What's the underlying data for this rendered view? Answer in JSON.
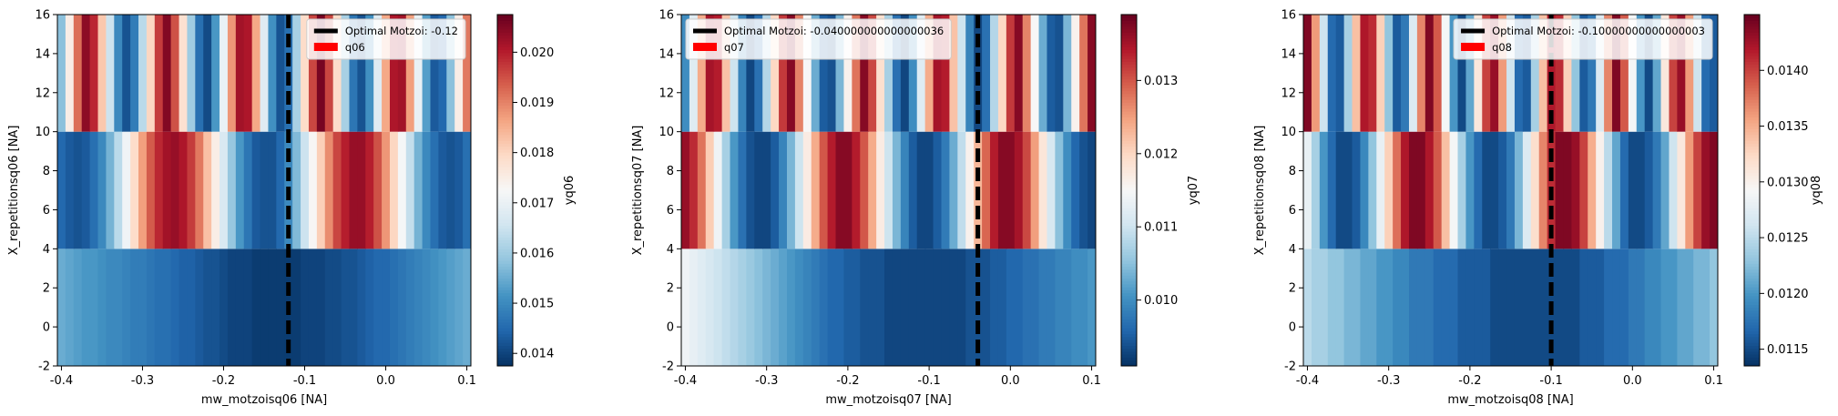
{
  "colormap": "RdBu_r",
  "chart_data": [
    {
      "type": "heatmap",
      "xlabel": "mw_motzoisq06 [NA]",
      "ylabel": "X_repetitionsq06 [NA]",
      "colorbar_label": "yq06",
      "xlim": [
        -0.405,
        0.105
      ],
      "ylim": [
        -2,
        16
      ],
      "x_ticks": [
        -0.4,
        -0.3,
        -0.2,
        -0.1,
        0.0,
        0.1
      ],
      "x_tick_labels": [
        "-0.4",
        "-0.3",
        "-0.2",
        "-0.1",
        "0.0",
        "0.1"
      ],
      "y_ticks": [
        -2,
        0,
        2,
        4,
        6,
        8,
        10,
        12,
        14,
        16
      ],
      "y_tick_labels": [
        "-2",
        "0",
        "2",
        "4",
        "6",
        "8",
        "10",
        "12",
        "14",
        "16"
      ],
      "clim": [
        0.01375,
        0.02075
      ],
      "colorbar_ticks": [
        0.014,
        0.015,
        0.016,
        0.017,
        0.018,
        0.019,
        0.02
      ],
      "colorbar_tick_labels": [
        "0.014",
        "0.015",
        "0.016",
        "0.017",
        "0.018",
        "0.019",
        "0.020"
      ],
      "optimal_x": -0.12,
      "legend": {
        "placement": "top-right",
        "line_label": "Optimal Motzoi: -0.12",
        "patch_label": "q06",
        "line_color": "#000000",
        "patch_color": "#ff0000"
      },
      "rows": [
        {
          "y0": -2,
          "y1": 4,
          "x_start": -0.4,
          "x_step": 0.01,
          "values": [
            0.0155,
            0.0154,
            0.0153,
            0.0152,
            0.0152,
            0.0151,
            0.015,
            0.015,
            0.0149,
            0.0148,
            0.0148,
            0.0147,
            0.0146,
            0.0146,
            0.0145,
            0.0144,
            0.0144,
            0.0143,
            0.0142,
            0.0142,
            0.0141,
            0.014,
            0.014,
            0.014,
            0.0139,
            0.0139,
            0.0139,
            0.0139,
            0.0139,
            0.0139,
            0.014,
            0.014,
            0.014,
            0.0141,
            0.0141,
            0.0142,
            0.0142,
            0.0143,
            0.0144,
            0.0145,
            0.0145,
            0.0146,
            0.0147,
            0.0148,
            0.0149,
            0.015,
            0.0151,
            0.0152,
            0.0153,
            0.0154,
            0.0155
          ]
        },
        {
          "y0": 4,
          "y1": 10,
          "x_start": -0.4,
          "x_step": 0.01,
          "values": [
            0.0145,
            0.0143,
            0.0142,
            0.0143,
            0.0146,
            0.015,
            0.0156,
            0.0163,
            0.0171,
            0.0179,
            0.0187,
            0.0194,
            0.0199,
            0.0202,
            0.0203,
            0.0201,
            0.0197,
            0.0191,
            0.0183,
            0.0175,
            0.0167,
            0.0159,
            0.0152,
            0.0147,
            0.0143,
            0.0142,
            0.0142,
            0.0145,
            0.015,
            0.0157,
            0.0165,
            0.0173,
            0.0181,
            0.0189,
            0.0196,
            0.02,
            0.0203,
            0.0203,
            0.02,
            0.0195,
            0.0188,
            0.018,
            0.0172,
            0.0164,
            0.0156,
            0.015,
            0.0146,
            0.0143,
            0.0142,
            0.0143,
            0.0146
          ]
        },
        {
          "y0": 10,
          "y1": 16,
          "x_start": -0.4,
          "x_step": 0.01,
          "values": [
            0.0158,
            0.0175,
            0.0192,
            0.0204,
            0.0199,
            0.0182,
            0.0165,
            0.015,
            0.0142,
            0.0148,
            0.0163,
            0.018,
            0.0197,
            0.0205,
            0.0195,
            0.0178,
            0.016,
            0.0146,
            0.0141,
            0.0152,
            0.017,
            0.0188,
            0.0202,
            0.0201,
            0.0186,
            0.0168,
            0.0151,
            0.0142,
            0.0146,
            0.0161,
            0.0179,
            0.0196,
            0.0206,
            0.0196,
            0.0179,
            0.0161,
            0.0147,
            0.0142,
            0.0151,
            0.0168,
            0.0186,
            0.0201,
            0.0202,
            0.0187,
            0.017,
            0.0153,
            0.0143,
            0.0145,
            0.0158,
            0.0175,
            0.0191
          ]
        }
      ]
    },
    {
      "type": "heatmap",
      "xlabel": "mw_motzoisq07 [NA]",
      "ylabel": "X_repetitionsq07 [NA]",
      "colorbar_label": "yq07",
      "xlim": [
        -0.405,
        0.105
      ],
      "ylim": [
        -2,
        16
      ],
      "x_ticks": [
        -0.4,
        -0.3,
        -0.2,
        -0.1,
        0.0,
        0.1
      ],
      "x_tick_labels": [
        "-0.4",
        "-0.3",
        "-0.2",
        "-0.1",
        "0.0",
        "0.1"
      ],
      "y_ticks": [
        -2,
        0,
        2,
        4,
        6,
        8,
        10,
        12,
        14,
        16
      ],
      "y_tick_labels": [
        "-2",
        "0",
        "2",
        "4",
        "6",
        "8",
        "10",
        "12",
        "14",
        "16"
      ],
      "clim": [
        0.0091,
        0.0139
      ],
      "colorbar_ticks": [
        0.01,
        0.011,
        0.012,
        0.013
      ],
      "colorbar_tick_labels": [
        "0.010",
        "0.011",
        "0.012",
        "0.013"
      ],
      "optimal_x": -0.04,
      "legend": {
        "placement": "top-left",
        "line_label": "Optimal Motzoi: -0.040000000000000036",
        "patch_label": "q07",
        "line_color": "#000000",
        "patch_color": "#ff0000"
      },
      "rows": [
        {
          "y0": -2,
          "y1": 4,
          "x_start": -0.4,
          "x_step": 0.01,
          "values": [
            0.0114,
            0.0113,
            0.0112,
            0.0111,
            0.011,
            0.0109,
            0.0108,
            0.0107,
            0.0106,
            0.0105,
            0.0104,
            0.0103,
            0.0102,
            0.0101,
            0.01,
            0.0099,
            0.0098,
            0.0097,
            0.0096,
            0.0096,
            0.0095,
            0.0095,
            0.0094,
            0.0094,
            0.0094,
            0.0093,
            0.0093,
            0.0093,
            0.0093,
            0.0093,
            0.0093,
            0.0093,
            0.0093,
            0.0093,
            0.0093,
            0.0094,
            0.0094,
            0.0094,
            0.0095,
            0.0095,
            0.0096,
            0.0096,
            0.0097,
            0.0097,
            0.0098,
            0.0098,
            0.0099,
            0.0099,
            0.01,
            0.01,
            0.0101
          ]
        },
        {
          "y0": 4,
          "y1": 10,
          "x_start": -0.4,
          "x_step": 0.01,
          "values": [
            0.0136,
            0.0133,
            0.0128,
            0.0121,
            0.0114,
            0.0107,
            0.0101,
            0.0097,
            0.0094,
            0.0093,
            0.0093,
            0.0095,
            0.0099,
            0.0104,
            0.011,
            0.0117,
            0.0124,
            0.013,
            0.0134,
            0.0137,
            0.0137,
            0.0134,
            0.013,
            0.0124,
            0.0117,
            0.011,
            0.0104,
            0.0099,
            0.0095,
            0.0093,
            0.0093,
            0.0095,
            0.0098,
            0.0103,
            0.0109,
            0.0116,
            0.0123,
            0.0129,
            0.0134,
            0.0137,
            0.0137,
            0.0135,
            0.0131,
            0.0125,
            0.0118,
            0.0111,
            0.0105,
            0.01,
            0.0096,
            0.0094,
            0.0093
          ]
        },
        {
          "y0": 10,
          "y1": 16,
          "x_start": -0.4,
          "x_step": 0.01,
          "values": [
            0.01,
            0.0112,
            0.0124,
            0.0135,
            0.0134,
            0.0122,
            0.011,
            0.0099,
            0.0093,
            0.0097,
            0.0108,
            0.012,
            0.0132,
            0.0137,
            0.0127,
            0.0115,
            0.0103,
            0.0095,
            0.0094,
            0.0104,
            0.0116,
            0.0128,
            0.0137,
            0.0131,
            0.0119,
            0.0107,
            0.0097,
            0.0093,
            0.01,
            0.0112,
            0.0124,
            0.0135,
            0.0134,
            0.0122,
            0.011,
            0.0099,
            0.0093,
            0.0097,
            0.0108,
            0.012,
            0.0132,
            0.0137,
            0.0127,
            0.0115,
            0.0103,
            0.0095,
            0.0094,
            0.0104,
            0.0116,
            0.0128,
            0.0137
          ]
        }
      ]
    },
    {
      "type": "heatmap",
      "xlabel": "mw_motzoisq08 [NA]",
      "ylabel": "X_repetitionsq08 [NA]",
      "colorbar_label": "yq08",
      "xlim": [
        -0.405,
        0.105
      ],
      "ylim": [
        -2,
        16
      ],
      "x_ticks": [
        -0.4,
        -0.3,
        -0.2,
        -0.1,
        0.0,
        0.1
      ],
      "x_tick_labels": [
        "-0.4",
        "-0.3",
        "-0.2",
        "-0.1",
        "0.0",
        "0.1"
      ],
      "y_ticks": [
        -2,
        0,
        2,
        4,
        6,
        8,
        10,
        12,
        14,
        16
      ],
      "y_tick_labels": [
        "-2",
        "0",
        "2",
        "4",
        "6",
        "8",
        "10",
        "12",
        "14",
        "16"
      ],
      "clim": [
        0.01135,
        0.0145
      ],
      "colorbar_ticks": [
        0.0115,
        0.012,
        0.0125,
        0.013,
        0.0135,
        0.014
      ],
      "colorbar_tick_labels": [
        "0.0115",
        "0.0120",
        "0.0125",
        "0.0130",
        "0.0135",
        "0.0140"
      ],
      "optimal_x": -0.1,
      "legend": {
        "placement": "top-right",
        "line_label": "Optimal Motzoi: -0.10000000000000003",
        "patch_label": "q08",
        "line_color": "#000000",
        "patch_color": "#ff0000"
      },
      "rows": [
        {
          "y0": -2,
          "y1": 4,
          "x_start": -0.4,
          "x_step": 0.01,
          "values": [
            0.0125,
            0.0124,
            0.0124,
            0.0123,
            0.0123,
            0.0122,
            0.0122,
            0.0121,
            0.0121,
            0.012,
            0.012,
            0.0119,
            0.0119,
            0.0118,
            0.0118,
            0.0118,
            0.0117,
            0.0117,
            0.0117,
            0.0116,
            0.0116,
            0.0116,
            0.0116,
            0.0115,
            0.0115,
            0.0115,
            0.0115,
            0.0115,
            0.0115,
            0.0115,
            0.0115,
            0.0115,
            0.0115,
            0.0115,
            0.0116,
            0.0116,
            0.0116,
            0.0117,
            0.0117,
            0.0117,
            0.0118,
            0.0118,
            0.0119,
            0.0119,
            0.012,
            0.012,
            0.0121,
            0.0121,
            0.0122,
            0.0122,
            0.0123
          ]
        },
        {
          "y0": 4,
          "y1": 10,
          "x_start": -0.4,
          "x_step": 0.01,
          "values": [
            0.0128,
            0.0124,
            0.012,
            0.0117,
            0.0115,
            0.0115,
            0.0116,
            0.0119,
            0.0123,
            0.0128,
            0.0133,
            0.0138,
            0.0142,
            0.0144,
            0.0144,
            0.0142,
            0.0139,
            0.0134,
            0.0129,
            0.0124,
            0.012,
            0.0117,
            0.0115,
            0.0115,
            0.0116,
            0.0118,
            0.0122,
            0.0127,
            0.0132,
            0.0137,
            0.0141,
            0.0144,
            0.0144,
            0.0143,
            0.014,
            0.0135,
            0.013,
            0.0125,
            0.0121,
            0.0117,
            0.0115,
            0.0115,
            0.0116,
            0.0118,
            0.0121,
            0.0126,
            0.0131,
            0.0136,
            0.014,
            0.0143,
            0.0144
          ]
        },
        {
          "y0": 10,
          "y1": 16,
          "x_start": -0.4,
          "x_step": 0.01,
          "values": [
            0.0144,
            0.0136,
            0.0126,
            0.0117,
            0.0116,
            0.0124,
            0.0134,
            0.0142,
            0.0141,
            0.0133,
            0.0123,
            0.0116,
            0.0118,
            0.0127,
            0.0137,
            0.0144,
            0.0139,
            0.0129,
            0.012,
            0.0115,
            0.0121,
            0.0131,
            0.014,
            0.0143,
            0.0136,
            0.0126,
            0.0117,
            0.0116,
            0.0124,
            0.0134,
            0.0142,
            0.0141,
            0.0133,
            0.0123,
            0.0116,
            0.0118,
            0.0127,
            0.0137,
            0.0144,
            0.0139,
            0.0129,
            0.012,
            0.0115,
            0.0121,
            0.0131,
            0.014,
            0.0143,
            0.0136,
            0.0126,
            0.0117,
            0.0116
          ]
        }
      ]
    }
  ]
}
